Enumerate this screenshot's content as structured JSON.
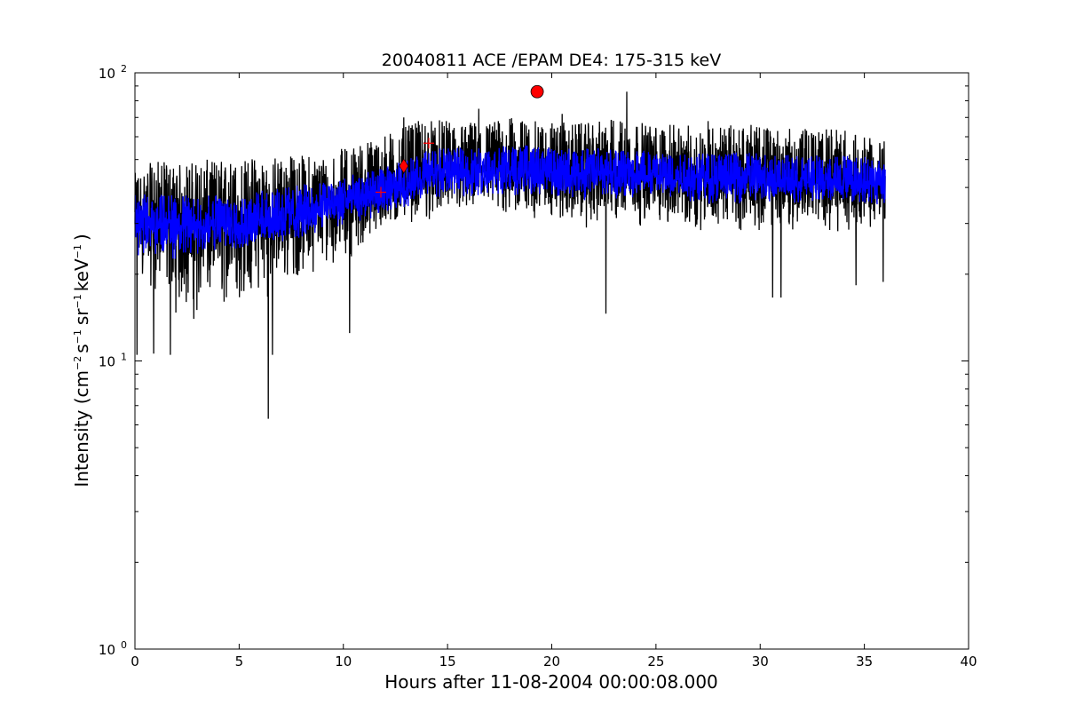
{
  "chart_data": {
    "type": "line",
    "title": "20040811 ACE /EPAM DE4: 175-315 keV",
    "xlabel": "Hours after 11-08-2004 00:00:08.000",
    "ylabel_parts": {
      "prefix": "Intensity (cm",
      "exp1": "−2",
      "s": "s",
      "exp2": "−1",
      "sr": "sr",
      "exp3": "−1",
      "kev": "keV",
      "exp4": "−1",
      "suffix": ")"
    },
    "xlim": [
      0,
      40
    ],
    "ylim": [
      1,
      100
    ],
    "yscale": "log",
    "grid": false,
    "x_ticks": [
      0,
      5,
      10,
      15,
      20,
      25,
      30,
      35,
      40
    ],
    "x_tick_labels": [
      "0",
      "5",
      "10",
      "15",
      "20",
      "25",
      "30",
      "35",
      "40"
    ],
    "y_ticks": [
      1,
      10,
      100
    ],
    "y_tick_labels": [
      {
        "base": "10",
        "exp": "0"
      },
      {
        "base": "10",
        "exp": "1"
      },
      {
        "base": "10",
        "exp": "2"
      }
    ],
    "series": [
      {
        "kind": "raw",
        "color": "#000000",
        "x": [
          0,
          1,
          2,
          3,
          4,
          5,
          6,
          7,
          8,
          9,
          10,
          11,
          12,
          13,
          14,
          15,
          16,
          17,
          18,
          19,
          20,
          21,
          22,
          23,
          24,
          25,
          26,
          27,
          28,
          29,
          30,
          31,
          32,
          33,
          34,
          35,
          36
        ],
        "y_median": [
          30,
          30,
          30,
          29,
          30,
          30,
          31,
          32,
          33,
          34,
          36,
          37,
          38,
          40,
          44,
          45,
          45,
          46,
          46,
          46,
          45,
          45,
          45,
          45,
          45,
          44,
          44,
          43,
          43,
          43,
          43,
          42,
          42,
          42,
          42,
          42,
          41
        ],
        "y_spread_low": [
          20,
          17,
          14,
          13,
          14,
          15,
          16,
          17,
          19,
          21,
          22,
          24,
          27,
          30,
          30,
          31,
          31,
          30,
          30,
          30,
          30,
          29,
          28,
          28,
          29,
          29,
          28,
          28,
          28,
          28,
          28,
          28,
          28,
          28,
          28,
          28,
          28
        ],
        "y_spread_high": [
          45,
          50,
          48,
          50,
          50,
          50,
          52,
          52,
          52,
          52,
          55,
          58,
          62,
          65,
          70,
          68,
          68,
          68,
          70,
          68,
          68,
          67,
          67,
          70,
          68,
          66,
          66,
          66,
          66,
          66,
          66,
          64,
          64,
          64,
          64,
          60,
          58
        ],
        "spikes": [
          {
            "x": 0.1,
            "y": 10.5
          },
          {
            "x": 0.9,
            "y": 10.6
          },
          {
            "x": 1.7,
            "y": 10.5
          },
          {
            "x": 6.4,
            "y": 6.3
          },
          {
            "x": 6.6,
            "y": 10.5
          },
          {
            "x": 10.3,
            "y": 12.5
          },
          {
            "x": 22.6,
            "y": 14.6
          },
          {
            "x": 23.6,
            "y": 86
          },
          {
            "x": 30.6,
            "y": 16.6
          },
          {
            "x": 31.0,
            "y": 16.6
          },
          {
            "x": 34.6,
            "y": 18.3
          },
          {
            "x": 35.9,
            "y": 18.8
          },
          {
            "x": 12.9,
            "y": 70
          },
          {
            "x": 16.5,
            "y": 75
          },
          {
            "x": 20.5,
            "y": 72
          },
          {
            "x": 27.5,
            "y": 68
          }
        ]
      },
      {
        "kind": "smoothed",
        "color": "#0000ff",
        "x": [
          0,
          1,
          2,
          3,
          4,
          5,
          6,
          7,
          8,
          9,
          10,
          11,
          12,
          13,
          14,
          15,
          16,
          17,
          18,
          19,
          20,
          21,
          22,
          23,
          24,
          25,
          26,
          27,
          28,
          29,
          30,
          31,
          32,
          33,
          34,
          35,
          36
        ],
        "y_median": [
          30,
          30,
          30,
          29,
          30,
          30,
          31,
          32,
          33,
          34,
          36,
          37,
          38,
          40,
          44,
          45,
          45,
          46,
          46,
          46,
          45,
          45,
          45,
          45,
          45,
          44,
          44,
          43,
          43,
          43,
          43,
          42,
          42,
          42,
          42,
          42,
          41
        ],
        "y_spread_low": [
          23,
          23,
          22,
          23,
          23,
          24,
          24,
          25,
          26,
          28,
          29,
          30,
          32,
          34,
          36,
          37,
          37,
          37,
          37,
          37,
          36,
          36,
          36,
          36,
          36,
          36,
          36,
          35,
          35,
          35,
          35,
          35,
          35,
          35,
          35,
          35,
          34
        ],
        "y_spread_high": [
          38,
          38,
          38,
          37,
          38,
          38,
          39,
          40,
          41,
          42,
          44,
          45,
          47,
          50,
          54,
          55,
          55,
          56,
          56,
          56,
          55,
          55,
          55,
          55,
          55,
          54,
          54,
          53,
          53,
          53,
          53,
          52,
          52,
          52,
          52,
          52,
          50
        ]
      }
    ],
    "markers": [
      {
        "shape": "plus",
        "x": 11.8,
        "y": 38.5,
        "color": "#ff0000"
      },
      {
        "shape": "diamond",
        "x": 12.9,
        "y": 47.5,
        "color": "#ff0000"
      },
      {
        "shape": "plus",
        "x": 14.1,
        "y": 57,
        "color": "#ff0000"
      },
      {
        "shape": "circle",
        "x": 19.3,
        "y": 86,
        "color": "#ff0000"
      }
    ]
  }
}
